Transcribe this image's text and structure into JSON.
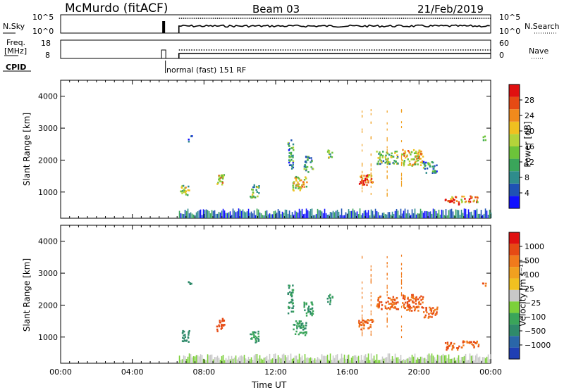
{
  "header": {
    "station": "McMurdo (fitACF)",
    "beam": "Beam 03",
    "date": "21/Feb/2019"
  },
  "status_panels": {
    "nsky_label": "N.Sky",
    "nsky_ticks": [
      "10^5",
      "10^0"
    ],
    "nsearch_label": "N.Search",
    "nsearch_ticks": [
      "10^5",
      "10^0"
    ],
    "freq_label_line1": "Freq.",
    "freq_label_line2": "[MHz]",
    "freq_ticks": [
      "18",
      "8"
    ],
    "nave_label": "Nave",
    "nave_ticks": [
      "60",
      "0"
    ],
    "cpid_label": "CPID",
    "cpid_text": "normal (fast) 151 RF"
  },
  "chart_data": [
    {
      "type": "heatmap",
      "name": "power-panel",
      "ylabel": "Slant Range [km]",
      "ylim": [
        180,
        4500
      ],
      "yticks": [
        "4000",
        "3000",
        "2000",
        "1000"
      ],
      "xlim": [
        0,
        24
      ],
      "colorbar_label": "Power [dB]",
      "colorbar_ticks": [
        "28",
        "24",
        "20",
        "16",
        "12",
        "8",
        "4"
      ],
      "colors": [
        "#1010ff",
        "#1f52b4",
        "#2f8c8c",
        "#3aa55a",
        "#6cc33a",
        "#b3d33a",
        "#f0c020",
        "#f08a1c",
        "#e64a14",
        "#e01010"
      ],
      "data_start_hour": 6.6
    },
    {
      "type": "heatmap",
      "name": "velocity-panel",
      "ylabel": "Slant Range [km]",
      "ylim": [
        180,
        4500
      ],
      "yticks": [
        "4000",
        "3000",
        "2000",
        "1000"
      ],
      "xlim": [
        0,
        24
      ],
      "xlabel": "Time UT",
      "xticks": [
        "00:00",
        "04:00",
        "08:00",
        "12:00",
        "16:00",
        "20:00",
        "00:00"
      ],
      "colorbar_label": "Velocity [m s⁻¹]",
      "colorbar_ticks": [
        "1000",
        "500",
        "100",
        "25",
        "−25",
        "−100",
        "−500",
        "−1000"
      ],
      "colors": [
        "#1f3fb4",
        "#2a66a8",
        "#2f8a6a",
        "#3aa55a",
        "#7cd03a",
        "#c8c8c8",
        "#f0c020",
        "#f0a020",
        "#f07a1c",
        "#e64a14",
        "#e01010"
      ]
    }
  ]
}
